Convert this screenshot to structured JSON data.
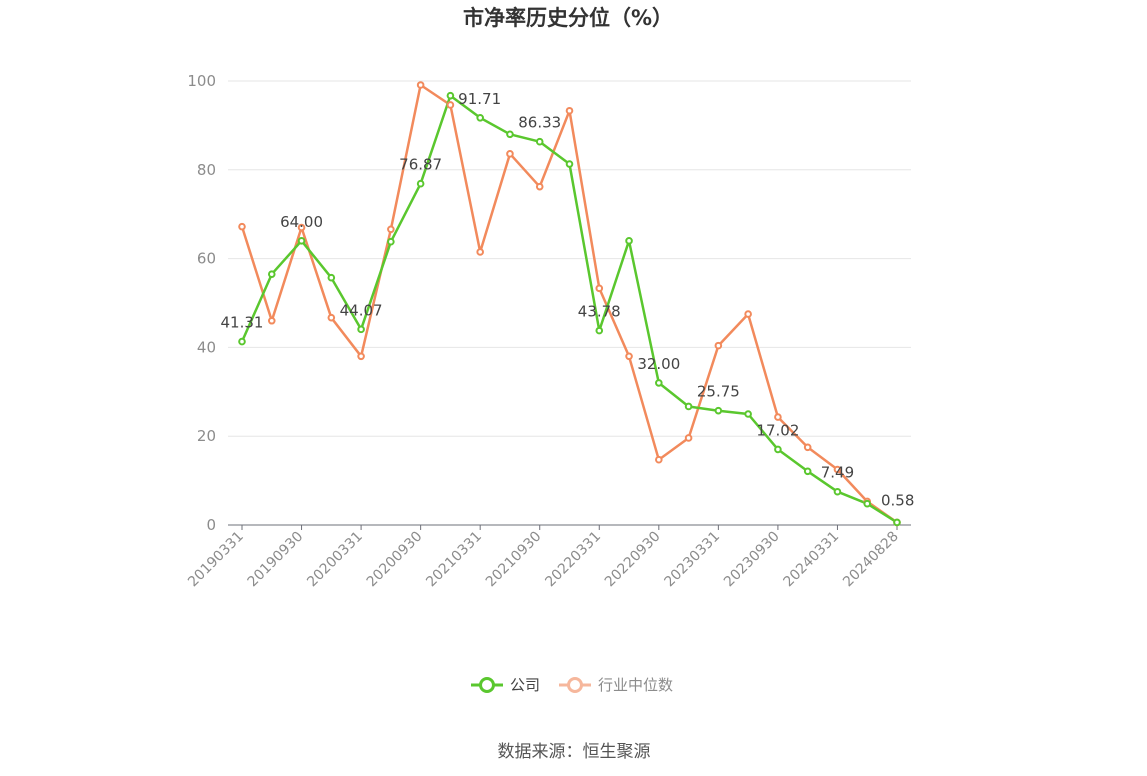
{
  "chart_data": {
    "type": "line",
    "title": "市净率历史分位（%）",
    "xlabel": "",
    "ylabel": "",
    "ylim": [
      0,
      100
    ],
    "yticks": [
      0,
      20,
      40,
      60,
      80,
      100
    ],
    "grid": true,
    "legend_position": "bottom",
    "x": [
      "20190331",
      "20190630",
      "20190930",
      "20191231",
      "20200331",
      "20200630",
      "20200930",
      "20201231",
      "20210331",
      "20210630",
      "20210930",
      "20211231",
      "20220331",
      "20220630",
      "20220930",
      "20221231",
      "20230331",
      "20230630",
      "20230930",
      "20231231",
      "20240331",
      "20240630",
      "20240828"
    ],
    "x_tick_labels": [
      "20190331",
      "20190930",
      "20200331",
      "20200930",
      "20210331",
      "20210930",
      "20220331",
      "20220930",
      "20230331",
      "20230930",
      "20240331",
      "20240828"
    ],
    "series": [
      {
        "name": "公司",
        "color": "#5ac72e",
        "values": [
          41.31,
          56.5,
          64.0,
          55.7,
          44.07,
          63.8,
          76.87,
          96.7,
          91.71,
          88.0,
          86.33,
          81.3,
          43.78,
          64.0,
          32.0,
          26.7,
          25.75,
          25.0,
          17.02,
          12.1,
          7.49,
          4.8,
          0.58
        ],
        "labeled_points": [
          {
            "index": 0,
            "text": "41.31"
          },
          {
            "index": 2,
            "text": "64.00"
          },
          {
            "index": 4,
            "text": "44.07"
          },
          {
            "index": 6,
            "text": "76.87"
          },
          {
            "index": 8,
            "text": "91.71"
          },
          {
            "index": 10,
            "text": "86.33"
          },
          {
            "index": 12,
            "text": "43.78"
          },
          {
            "index": 14,
            "text": "32.00"
          },
          {
            "index": 16,
            "text": "25.75"
          },
          {
            "index": 18,
            "text": "17.02"
          },
          {
            "index": 20,
            "text": "7.49"
          },
          {
            "index": 22,
            "text": "0.58"
          }
        ]
      },
      {
        "name": "行业中位数",
        "color": "#f28a5c",
        "values": [
          67.2,
          46.0,
          67.0,
          46.7,
          38.0,
          66.6,
          99.1,
          94.6,
          61.5,
          83.6,
          76.2,
          93.3,
          53.3,
          38.0,
          14.7,
          19.6,
          40.4,
          47.5,
          24.3,
          17.5,
          12.5,
          5.3,
          0.58
        ]
      }
    ]
  },
  "legend": {
    "items": [
      {
        "label": "公司",
        "color": "#5ac72e",
        "active": true
      },
      {
        "label": "行业中位数",
        "color": "#f6b79c",
        "active": false
      }
    ]
  },
  "source_text": "数据来源：恒生聚源"
}
